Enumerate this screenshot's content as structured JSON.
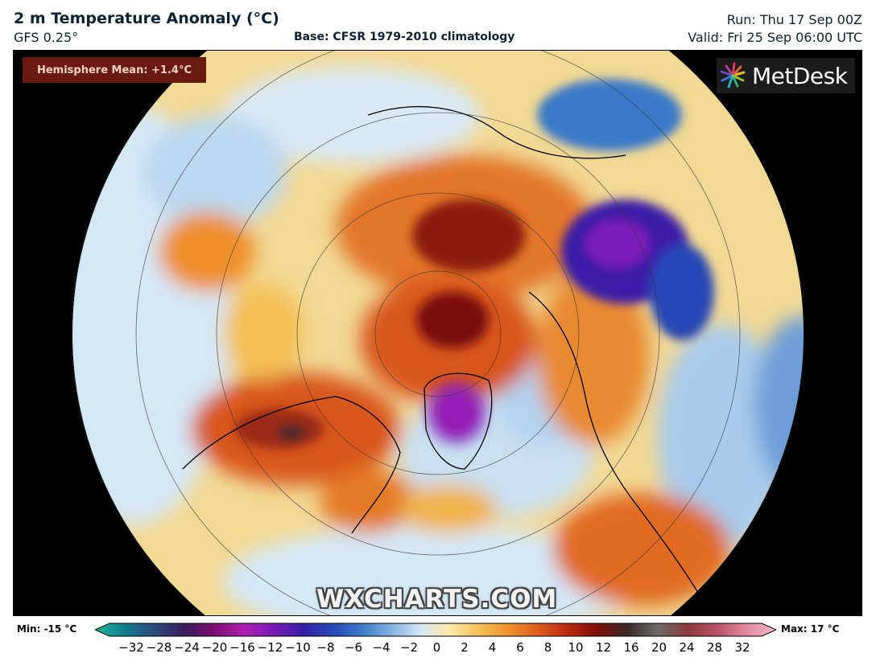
{
  "header": {
    "title": "2 m Temperature Anomaly (°C)",
    "model": "GFS 0.25°",
    "base": "Base: CFSR 1979-2010 climatology",
    "run": "Run: Thu 17 Sep 00Z",
    "valid": "Valid: Fri 25 Sep 06:00 UTC"
  },
  "map": {
    "hemisphere_mean": "Hemisphere Mean: +1.4°C",
    "brand": "MetDesk",
    "watermark": "WXCHARTS.COM",
    "projection": "north-polar-stereographic"
  },
  "colorbar": {
    "min_label": "Min: -15 °C",
    "max_label": "Max: 17 °C",
    "ticks": [
      "−32",
      "−28",
      "−24",
      "−20",
      "−16",
      "−12",
      "−10",
      "−8",
      "−6",
      "−4",
      "−2",
      "0",
      "2",
      "4",
      "6",
      "8",
      "10",
      "12",
      "16",
      "20",
      "24",
      "28",
      "32"
    ],
    "colors": [
      "#1fb89c",
      "#0f7c8c",
      "#2b4a7e",
      "#3a1e5c",
      "#7a0e6e",
      "#b01eb0",
      "#7a1ab8",
      "#3a1ea8",
      "#2546b5",
      "#3b79c8",
      "#82b2e0",
      "#d6e7f5",
      "#fde9a6",
      "#f4bf55",
      "#ee8f2c",
      "#dc5a1e",
      "#b8280f",
      "#7a0e08",
      "#3a2a2a",
      "#6e6a6a",
      "#8a3a3a",
      "#b85068",
      "#e28aa0",
      "#f4b8c8"
    ]
  }
}
